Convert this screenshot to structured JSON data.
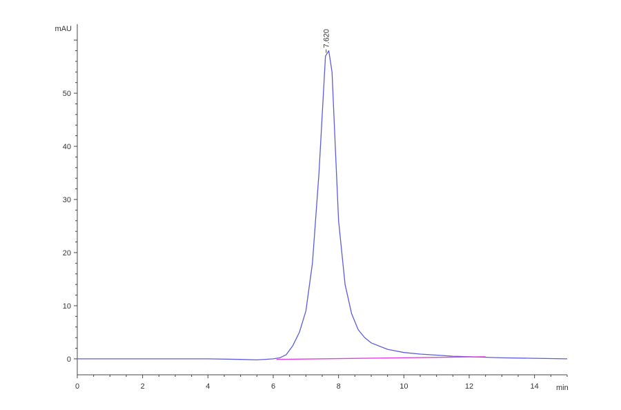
{
  "chart_data": {
    "type": "line",
    "title": "",
    "xlabel": "min",
    "ylabel": "mAU",
    "xlim": [
      0,
      15
    ],
    "ylim": [
      -3,
      63
    ],
    "x_ticks": [
      0,
      2,
      4,
      6,
      8,
      10,
      12,
      14
    ],
    "y_ticks": [
      0,
      10,
      20,
      30,
      40,
      50
    ],
    "grid": false,
    "colors": {
      "signal": "#5b5bdc",
      "baseline": "#e040e0",
      "axis": "#444444"
    },
    "series": [
      {
        "role": "signal",
        "x": [
          0,
          1,
          2,
          3,
          4,
          5,
          5.5,
          6,
          6.2,
          6.4,
          6.6,
          6.8,
          7.0,
          7.2,
          7.4,
          7.5,
          7.6,
          7.7,
          7.8,
          7.9,
          8.0,
          8.2,
          8.4,
          8.6,
          8.8,
          9.0,
          9.5,
          10,
          10.5,
          11,
          11.5,
          12,
          12.5,
          13,
          14,
          15
        ],
        "y": [
          0,
          0,
          0,
          0,
          0,
          -0.1,
          -0.2,
          0,
          0.2,
          0.8,
          2.5,
          5,
          9,
          18,
          35,
          46,
          57,
          58,
          54,
          40,
          26,
          14,
          8.5,
          5.5,
          4,
          3,
          1.8,
          1.2,
          0.9,
          0.7,
          0.5,
          0.4,
          0.3,
          0.2,
          0.1,
          0
        ]
      },
      {
        "role": "baseline",
        "x": [
          6.1,
          12.5
        ],
        "y": [
          -0.1,
          0.4
        ]
      }
    ],
    "annotations": [
      {
        "text": "7.620",
        "x": 7.62,
        "y": 58
      }
    ]
  }
}
